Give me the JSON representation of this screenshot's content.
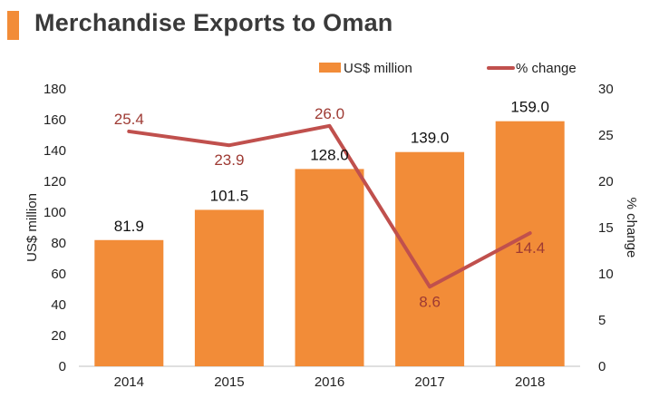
{
  "title": "Merchandise Exports to Oman",
  "colors": {
    "accent": "#F28C38",
    "bar": "#F28C38",
    "line": "#C0504D",
    "line_label": "#9e3a33"
  },
  "chart_data": {
    "type": "bar",
    "title": "Merchandise Exports to Oman",
    "categories": [
      "2014",
      "2015",
      "2016",
      "2017",
      "2018"
    ],
    "series": [
      {
        "name": "US$ million",
        "type": "bar",
        "axis": "left",
        "values": [
          81.9,
          101.5,
          128.0,
          139.0,
          159.0
        ],
        "labels": [
          "81.9",
          "101.5",
          "128.0",
          "139.0",
          "159.0"
        ]
      },
      {
        "name": "% change",
        "type": "line",
        "axis": "right",
        "values": [
          25.4,
          23.9,
          26.0,
          8.6,
          14.4
        ],
        "labels": [
          "25.4",
          "23.9",
          "26.0",
          "8.6",
          "14.4"
        ]
      }
    ],
    "ylabel": "US$ million",
    "y2label": "% change",
    "ylim": [
      0,
      180
    ],
    "y2lim": [
      0,
      30
    ],
    "yticks": [
      "0",
      "20",
      "40",
      "60",
      "80",
      "100",
      "120",
      "140",
      "160",
      "180"
    ],
    "y2ticks": [
      "0",
      "5",
      "10",
      "15",
      "20",
      "25",
      "30"
    ],
    "legend": "top-right",
    "grid": false
  }
}
